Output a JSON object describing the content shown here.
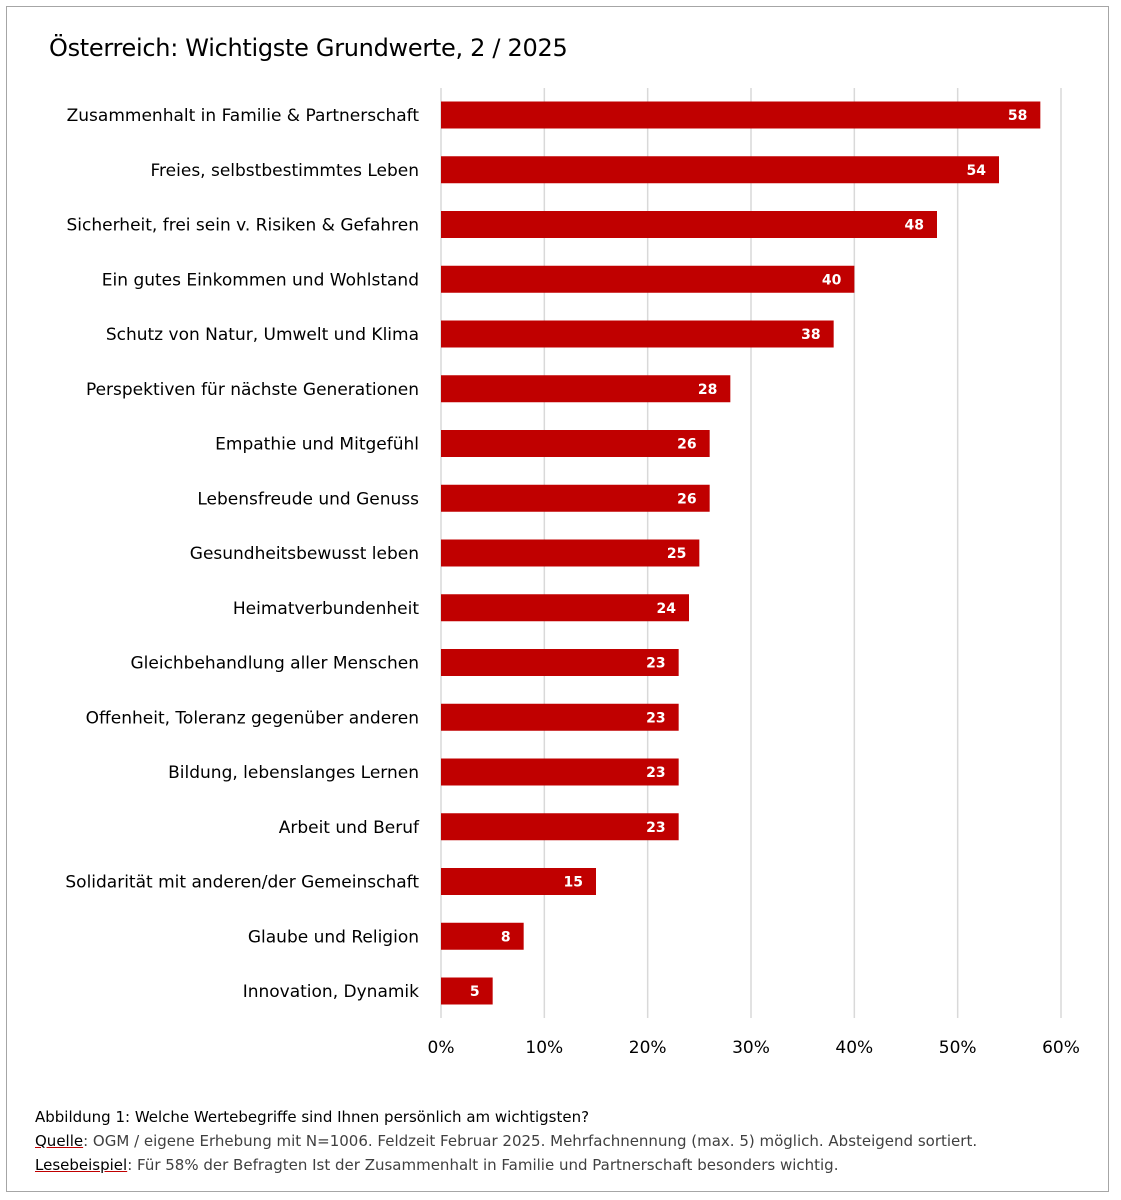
{
  "title": "Österreich: Wichtigste Grundwerte, 2 / 2025",
  "chart_data": {
    "type": "bar",
    "orientation": "horizontal",
    "categories": [
      "Zusammenhalt in Familie & Partnerschaft",
      "Freies, selbstbestimmtes Leben",
      "Sicherheit, frei sein v. Risiken & Gefahren",
      "Ein gutes Einkommen und Wohlstand",
      "Schutz von Natur, Umwelt und Klima",
      "Perspektiven für nächste Generationen",
      "Empathie und Mitgefühl",
      "Lebensfreude und Genuss",
      "Gesundheitsbewusst leben",
      "Heimatverbundenheit",
      "Gleichbehandlung aller Menschen",
      "Offenheit, Toleranz gegenüber anderen",
      "Bildung, lebenslanges Lernen",
      "Arbeit und Beruf",
      "Solidarität mit anderen/der Gemeinschaft",
      "Glaube und Religion",
      "Innovation, Dynamik"
    ],
    "values": [
      58,
      54,
      48,
      40,
      38,
      28,
      26,
      26,
      25,
      24,
      23,
      23,
      23,
      23,
      15,
      8,
      5
    ],
    "xlim": [
      0,
      60
    ],
    "xticks": [
      0,
      10,
      20,
      30,
      40,
      50,
      60
    ],
    "xtick_labels": [
      "0%",
      "10%",
      "20%",
      "30%",
      "40%",
      "50%",
      "60%"
    ],
    "grid": "vertical",
    "bar_color": "#c00000",
    "data_labels": true
  },
  "notes": {
    "caption": "Abbildung 1: Welche Wertebegriffe sind Ihnen persönlich am wichtigsten?",
    "source_key": "Quelle",
    "source_text": ": OGM / eigene Erhebung mit N=1006. Feldzeit Februar 2025. Mehrfachnennung (max. 5) möglich. Absteigend sortiert.",
    "example_key": "Lesebeispiel",
    "example_text": ": Für 58% der Befragten Ist der Zusammenhalt in Familie und Partnerschaft besonders wichtig."
  }
}
